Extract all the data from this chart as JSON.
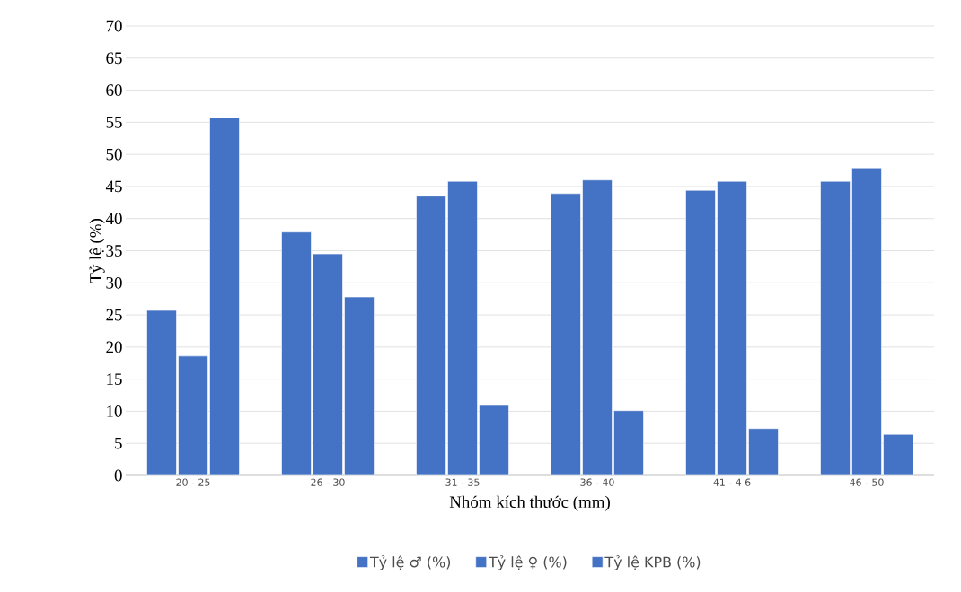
{
  "chart_data": {
    "type": "bar",
    "xlabel": "Nhóm kích thước (mm)",
    "ylabel": "Tỷ lệ (%)",
    "categories": [
      "20 - 25",
      "26 - 30",
      "31 - 35",
      "36 - 40",
      "41 - 4 6",
      "46 - 50"
    ],
    "series": [
      {
        "name": "Tỷ lệ ♂ (%)",
        "color": "#4472c4",
        "values": [
          25.7,
          37.9,
          43.5,
          43.9,
          44.4,
          45.8
        ]
      },
      {
        "name": "Tỷ lệ ♀ (%)",
        "color": "#4472c4",
        "values": [
          18.6,
          34.5,
          45.8,
          46.0,
          45.8,
          47.9
        ]
      },
      {
        "name": "Tỷ lệ KPB (%)",
        "color": "#4472c4",
        "values": [
          55.7,
          27.8,
          10.9,
          10.1,
          7.3,
          6.4
        ]
      }
    ],
    "ylim": [
      0,
      70
    ],
    "yticks": [
      0,
      5,
      10,
      15,
      20,
      25,
      30,
      35,
      40,
      45,
      50,
      55,
      60,
      65,
      70
    ],
    "grid": "y",
    "legend": "bottom"
  }
}
